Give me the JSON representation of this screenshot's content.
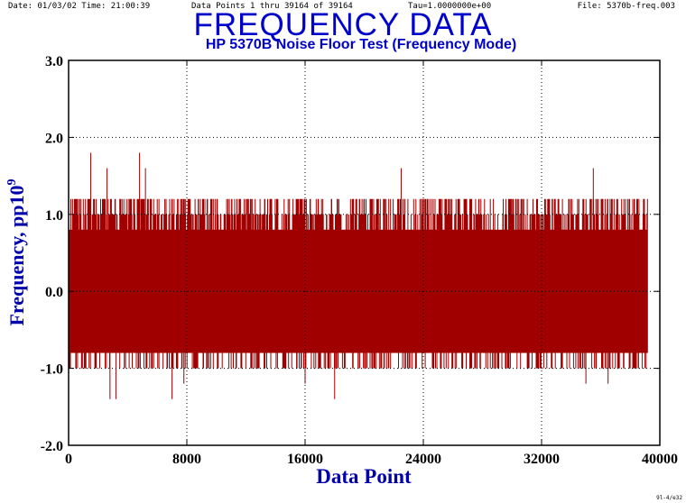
{
  "header": {
    "date": "Date: 01/03/02  Time: 21:00:39",
    "points": "Data Points 1 thru  39164  of  39164",
    "tau": "Tau=1.0000000e+00",
    "file": "File: 5370b-freq.003"
  },
  "footer_note": "9l-4/e32",
  "chart_data": {
    "type": "line",
    "title": "FREQUENCY DATA",
    "subtitle": "HP 5370B Noise Floor Test (Frequency Mode)",
    "xlabel": "Data Point",
    "ylabel": "Frequency, pp10",
    "ylabel_sup": "9",
    "xlim": [
      0,
      40000
    ],
    "ylim": [
      -2.0,
      3.0
    ],
    "xticks": [
      0,
      8000,
      16000,
      24000,
      32000,
      40000
    ],
    "yticks": [
      -2.0,
      -1.0,
      0.0,
      1.0,
      2.0,
      3.0
    ],
    "xtick_labels": [
      "0",
      "8000",
      "16000",
      "24000",
      "32000",
      "40000"
    ],
    "ytick_labels": [
      "-2.0",
      "-1.0",
      "0.0",
      "1.0",
      "2.0",
      "3.0"
    ],
    "grid": true,
    "n_points": 39164,
    "series": [
      {
        "color": "#a00000",
        "band_range": [
          -0.8,
          0.8
        ],
        "frequent_range": [
          -1.0,
          1.2
        ],
        "spikes": [
          {
            "x": 1500,
            "y": 1.8
          },
          {
            "x": 4800,
            "y": 1.8
          },
          {
            "x": 2600,
            "y": 1.6
          },
          {
            "x": 22500,
            "y": 1.6
          },
          {
            "x": 35500,
            "y": 1.6
          },
          {
            "x": 5200,
            "y": 1.6
          },
          {
            "x": 2800,
            "y": -1.4
          },
          {
            "x": 3200,
            "y": -1.4
          },
          {
            "x": 7000,
            "y": -1.4
          },
          {
            "x": 18000,
            "y": -1.4
          },
          {
            "x": 7800,
            "y": -1.2
          },
          {
            "x": 16000,
            "y": -1.2
          },
          {
            "x": 35000,
            "y": -1.2
          },
          {
            "x": 36500,
            "y": -1.2
          },
          {
            "x": 26000,
            "y": 0.4
          }
        ]
      }
    ]
  }
}
